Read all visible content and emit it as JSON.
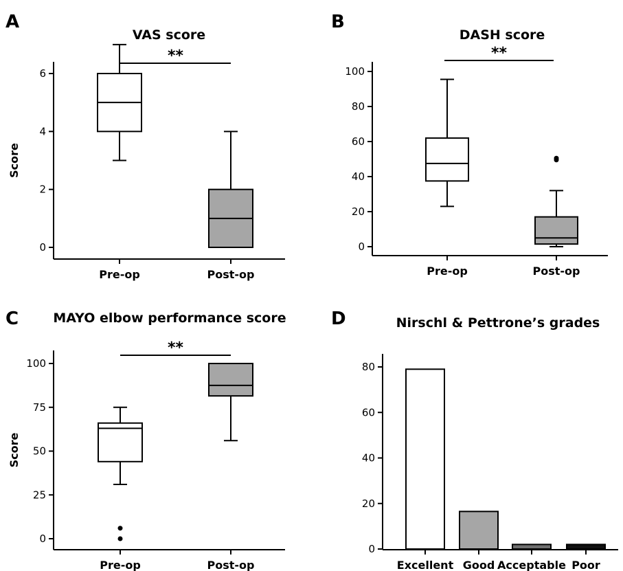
{
  "chart_data": [
    {
      "panel": "A",
      "type": "box",
      "title": "VAS score",
      "ylabel": "Score",
      "xlabel": "",
      "ylim": [
        0,
        7
      ],
      "yticks": [
        0,
        2,
        4,
        6
      ],
      "categories": [
        "Pre-op",
        "Post-op"
      ],
      "boxes": [
        {
          "min": 3,
          "q1": 4,
          "median": 5,
          "q3": 6,
          "max": 7,
          "outliers": [],
          "fill": "#ffffff"
        },
        {
          "min": 0,
          "q1": 0,
          "median": 1,
          "q3": 2,
          "max": 4,
          "outliers": [],
          "fill": "#a6a6a6"
        }
      ],
      "significance": "**"
    },
    {
      "panel": "B",
      "type": "box",
      "title": "DASH score",
      "ylabel": "",
      "xlabel": "",
      "ylim": [
        0,
        100
      ],
      "yticks": [
        0,
        20,
        40,
        60,
        80,
        100
      ],
      "categories": [
        "Pre-op",
        "Post-op"
      ],
      "boxes": [
        {
          "min": 23,
          "q1": 37.5,
          "median": 47.5,
          "q3": 62,
          "max": 95.5,
          "outliers": [],
          "fill": "#ffffff"
        },
        {
          "min": 0,
          "q1": 1.5,
          "median": 5,
          "q3": 17,
          "max": 32,
          "outliers": [
            49.5,
            50.5
          ],
          "fill": "#a6a6a6"
        }
      ],
      "significance": "**"
    },
    {
      "panel": "C",
      "type": "box",
      "title": "MAYO elbow performance score",
      "ylabel": "Score",
      "xlabel": "",
      "ylim": [
        0,
        100
      ],
      "yticks": [
        0,
        25,
        50,
        75,
        100
      ],
      "categories": [
        "Pre-op",
        "Post-op"
      ],
      "boxes": [
        {
          "min": 31,
          "q1": 44,
          "median": 63,
          "q3": 66,
          "max": 75,
          "outliers": [
            6,
            0
          ],
          "fill": "#ffffff"
        },
        {
          "min": 56,
          "q1": 81.5,
          "median": 87.5,
          "q3": 100,
          "max": 100,
          "outliers": [],
          "fill": "#a6a6a6"
        }
      ],
      "significance": "**"
    },
    {
      "panel": "D",
      "type": "bar",
      "title": "Nirschl & Pettrone’s grades",
      "ylabel": "",
      "xlabel": "",
      "ylim": [
        0,
        80
      ],
      "yticks": [
        0,
        20,
        40,
        60,
        80
      ],
      "categories": [
        "Excellent",
        "Good",
        "Acceptable",
        "Poor"
      ],
      "values": [
        79,
        16.5,
        2,
        2
      ],
      "colors": [
        "#ffffff",
        "#a6a6a6",
        "#707070",
        "#111111"
      ]
    }
  ]
}
